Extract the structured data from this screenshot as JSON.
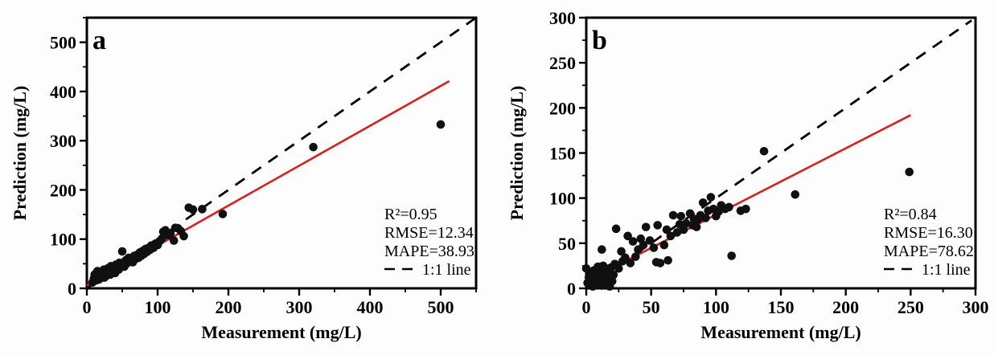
{
  "figure": {
    "background": "#fdfdfd"
  },
  "colors": {
    "axis": "#000000",
    "text": "#000000",
    "point": "#101010",
    "fit_line": "#d7201d",
    "identity_line": "#000000"
  },
  "chart_data": [
    {
      "type": "scatter",
      "panel_label": "a",
      "xlabel": "Measurement (mg/L)",
      "ylabel": "Prediction (mg/L)",
      "xlim": [
        0,
        550
      ],
      "ylim": [
        0,
        550
      ],
      "xticks": [
        0,
        100,
        200,
        300,
        400,
        500
      ],
      "yticks": [
        0,
        100,
        200,
        300,
        400,
        500
      ],
      "minor_step": 50,
      "stats": [
        "R²=0.95",
        "RMSE=12.34",
        "MAPE=38.93"
      ],
      "legend_label": "1:1 line",
      "identity_line": [
        [
          0,
          0
        ],
        [
          548,
          548
        ]
      ],
      "fit_line": [
        [
          0,
          6
        ],
        [
          512,
          421
        ]
      ],
      "points": [
        [
          8,
          12
        ],
        [
          10,
          20
        ],
        [
          11,
          28
        ],
        [
          13,
          16
        ],
        [
          14,
          24
        ],
        [
          15,
          35
        ],
        [
          17,
          18
        ],
        [
          18,
          27
        ],
        [
          20,
          21
        ],
        [
          21,
          33
        ],
        [
          22,
          25
        ],
        [
          24,
          38
        ],
        [
          25,
          22
        ],
        [
          26,
          30
        ],
        [
          28,
          26
        ],
        [
          30,
          41
        ],
        [
          31,
          33
        ],
        [
          33,
          28
        ],
        [
          34,
          45
        ],
        [
          36,
          36
        ],
        [
          38,
          41
        ],
        [
          40,
          31
        ],
        [
          41,
          48
        ],
        [
          43,
          42
        ],
        [
          45,
          38
        ],
        [
          46,
          52
        ],
        [
          48,
          46
        ],
        [
          50,
          75
        ],
        [
          51,
          50
        ],
        [
          53,
          44
        ],
        [
          55,
          57
        ],
        [
          57,
          51
        ],
        [
          59,
          62
        ],
        [
          61,
          55
        ],
        [
          63,
          60
        ],
        [
          65,
          53
        ],
        [
          67,
          66
        ],
        [
          69,
          60
        ],
        [
          71,
          68
        ],
        [
          73,
          62
        ],
        [
          75,
          73
        ],
        [
          77,
          66
        ],
        [
          79,
          76
        ],
        [
          81,
          70
        ],
        [
          83,
          80
        ],
        [
          85,
          74
        ],
        [
          87,
          82
        ],
        [
          89,
          78
        ],
        [
          91,
          87
        ],
        [
          94,
          82
        ],
        [
          97,
          91
        ],
        [
          100,
          88
        ],
        [
          103,
          96
        ],
        [
          106,
          101
        ],
        [
          108,
          115
        ],
        [
          111,
          118
        ],
        [
          115,
          108
        ],
        [
          118,
          112
        ],
        [
          123,
          97
        ],
        [
          125,
          123
        ],
        [
          129,
          122
        ],
        [
          133,
          116
        ],
        [
          137,
          106
        ],
        [
          144,
          164
        ],
        [
          150,
          160
        ],
        [
          163,
          161
        ],
        [
          192,
          151
        ],
        [
          320,
          287
        ],
        [
          500,
          333
        ]
      ]
    },
    {
      "type": "scatter",
      "panel_label": "b",
      "xlabel": "Measurement (mg/L)",
      "ylabel": "Prediction (mg/L)",
      "xlim": [
        0,
        300
      ],
      "ylim": [
        0,
        300
      ],
      "xticks": [
        0,
        50,
        100,
        150,
        200,
        250,
        300
      ],
      "yticks": [
        0,
        50,
        100,
        150,
        200,
        250,
        300
      ],
      "minor_step": 25,
      "stats": [
        "R²=0.84",
        "RMSE=16.30",
        "MAPE=78.62"
      ],
      "legend_label": "1:1 line",
      "identity_line": [
        [
          0,
          0
        ],
        [
          297,
          297
        ]
      ],
      "fit_line": [
        [
          0,
          8
        ],
        [
          250,
          192
        ]
      ],
      "points": [
        [
          0,
          22
        ],
        [
          1,
          6
        ],
        [
          2,
          12
        ],
        [
          3,
          4
        ],
        [
          4,
          9
        ],
        [
          4,
          17
        ],
        [
          5,
          2
        ],
        [
          5,
          13
        ],
        [
          6,
          7
        ],
        [
          6,
          20
        ],
        [
          7,
          11
        ],
        [
          8,
          4
        ],
        [
          8,
          16
        ],
        [
          9,
          9
        ],
        [
          9,
          24
        ],
        [
          10,
          6
        ],
        [
          10,
          14
        ],
        [
          11,
          19
        ],
        [
          12,
          3
        ],
        [
          12,
          11
        ],
        [
          12,
          43
        ],
        [
          13,
          16
        ],
        [
          13,
          25
        ],
        [
          14,
          7
        ],
        [
          15,
          13
        ],
        [
          15,
          22
        ],
        [
          16,
          5
        ],
        [
          17,
          17
        ],
        [
          18,
          2
        ],
        [
          18,
          11
        ],
        [
          19,
          23
        ],
        [
          20,
          8
        ],
        [
          21,
          15
        ],
        [
          22,
          27
        ],
        [
          23,
          66
        ],
        [
          25,
          22
        ],
        [
          27,
          41
        ],
        [
          28,
          30
        ],
        [
          30,
          34
        ],
        [
          32,
          58
        ],
        [
          34,
          28
        ],
        [
          36,
          52
        ],
        [
          38,
          35
        ],
        [
          40,
          43
        ],
        [
          42,
          55
        ],
        [
          44,
          48
        ],
        [
          46,
          68
        ],
        [
          49,
          53
        ],
        [
          52,
          45
        ],
        [
          54,
          29
        ],
        [
          55,
          70
        ],
        [
          57,
          28
        ],
        [
          60,
          48
        ],
        [
          62,
          65
        ],
        [
          63,
          31
        ],
        [
          65,
          58
        ],
        [
          67,
          81
        ],
        [
          70,
          62
        ],
        [
          72,
          71
        ],
        [
          73,
          80
        ],
        [
          75,
          65
        ],
        [
          77,
          72
        ],
        [
          80,
          83
        ],
        [
          82,
          70
        ],
        [
          83,
          77
        ],
        [
          85,
          68
        ],
        [
          86,
          76
        ],
        [
          88,
          81
        ],
        [
          90,
          95
        ],
        [
          92,
          78
        ],
        [
          94,
          86
        ],
        [
          96,
          101
        ],
        [
          98,
          88
        ],
        [
          100,
          80
        ],
        [
          102,
          85
        ],
        [
          104,
          92
        ],
        [
          107,
          88
        ],
        [
          110,
          90
        ],
        [
          112,
          36
        ],
        [
          119,
          86
        ],
        [
          123,
          88
        ],
        [
          137,
          152
        ],
        [
          161,
          104
        ],
        [
          249,
          129
        ]
      ]
    }
  ]
}
